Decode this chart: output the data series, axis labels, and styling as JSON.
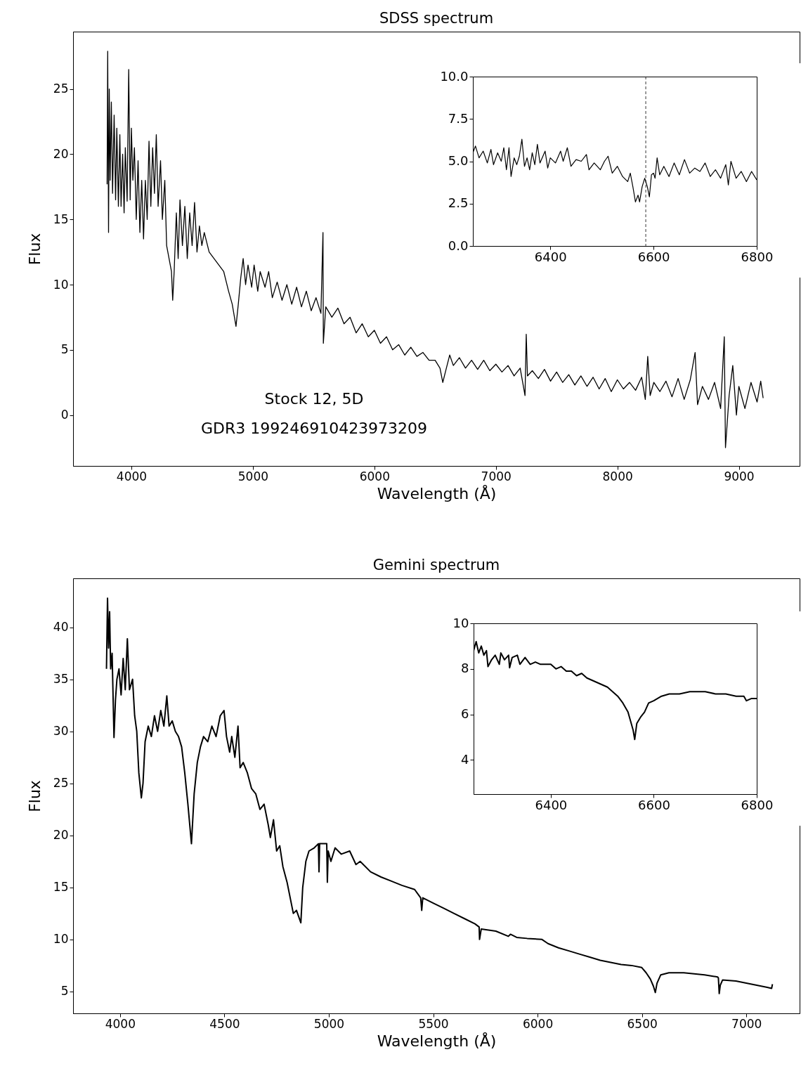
{
  "chart_data": [
    {
      "type": "line",
      "title": "SDSS spectrum",
      "xlabel": "Wavelength (Å)",
      "ylabel": "Flux",
      "color": "#000000",
      "xlim": [
        3520,
        9500
      ],
      "ylim": [
        -3.9,
        29.4
      ],
      "xticks": [
        4000,
        5000,
        6000,
        7000,
        8000,
        9000
      ],
      "yticks": [
        0,
        5,
        10,
        15,
        20,
        25
      ],
      "annotations": [
        "Stock 12, 5D",
        "GDR3 199246910423973209"
      ],
      "x": [
        3800,
        3805,
        3812,
        3818,
        3825,
        3835,
        3845,
        3858,
        3870,
        3880,
        3893,
        3905,
        3915,
        3928,
        3940,
        3950,
        3965,
        3978,
        3990,
        4000,
        4012,
        4025,
        4040,
        4055,
        4070,
        4085,
        4100,
        4115,
        4130,
        4145,
        4160,
        4175,
        4190,
        4205,
        4220,
        4240,
        4255,
        4275,
        4290,
        4310,
        4330,
        4340,
        4352,
        4370,
        4385,
        4400,
        4420,
        4440,
        4460,
        4480,
        4500,
        4520,
        4540,
        4560,
        4580,
        4600,
        4640,
        4680,
        4720,
        4760,
        4800,
        4830,
        4861,
        4880,
        4900,
        4920,
        4940,
        4960,
        4990,
        5010,
        5040,
        5060,
        5100,
        5130,
        5160,
        5200,
        5240,
        5280,
        5320,
        5360,
        5400,
        5440,
        5480,
        5520,
        5560,
        5577,
        5580,
        5600,
        5650,
        5700,
        5750,
        5800,
        5850,
        5900,
        5950,
        6000,
        6050,
        6100,
        6150,
        6200,
        6250,
        6300,
        6350,
        6400,
        6450,
        6500,
        6540,
        6563,
        6590,
        6620,
        6650,
        6700,
        6750,
        6800,
        6850,
        6900,
        6950,
        7000,
        7050,
        7100,
        7150,
        7200,
        7240,
        7250,
        7260,
        7300,
        7350,
        7400,
        7450,
        7500,
        7550,
        7600,
        7650,
        7700,
        7750,
        7800,
        7850,
        7900,
        7950,
        8000,
        8050,
        8100,
        8150,
        8200,
        8230,
        8250,
        8270,
        8300,
        8350,
        8400,
        8450,
        8500,
        8550,
        8600,
        8640,
        8660,
        8700,
        8750,
        8800,
        8850,
        8880,
        8890,
        8920,
        8950,
        8980,
        9000,
        9050,
        9100,
        9150,
        9180,
        9200
      ],
      "values": [
        17.7,
        27.9,
        14,
        25,
        18,
        24,
        17,
        23,
        16.5,
        22,
        16,
        21.5,
        16,
        20,
        15.5,
        20.5,
        16.4,
        26.5,
        16.5,
        22,
        18,
        20.5,
        15,
        19.5,
        14,
        18,
        13.5,
        18,
        15,
        21,
        16,
        20.5,
        17,
        21.5,
        16,
        19.5,
        15,
        18,
        13,
        12,
        11,
        8.8,
        11,
        15.5,
        12,
        16.5,
        13,
        16,
        12,
        15.5,
        13,
        16.3,
        12.5,
        14.5,
        13,
        14,
        12.5,
        12,
        11.5,
        11,
        9.5,
        8.5,
        6.8,
        8.5,
        10.5,
        12,
        10,
        11.5,
        9.8,
        11.5,
        9.5,
        11,
        9.8,
        11,
        9,
        10.2,
        8.8,
        10,
        8.5,
        9.8,
        8.3,
        9.5,
        8,
        9,
        7.8,
        14,
        5.5,
        8.3,
        7.5,
        8.2,
        7,
        7.5,
        6.3,
        7,
        6,
        6.5,
        5.5,
        6,
        5,
        5.4,
        4.6,
        5.2,
        4.5,
        4.8,
        4.2,
        4.2,
        3.6,
        2.5,
        3.5,
        4.6,
        3.8,
        4.4,
        3.6,
        4.2,
        3.5,
        4.2,
        3.4,
        3.9,
        3.3,
        3.8,
        3,
        3.6,
        1.5,
        6.2,
        3,
        3.4,
        2.8,
        3.5,
        2.6,
        3.3,
        2.5,
        3.1,
        2.3,
        3,
        2.2,
        2.9,
        2,
        2.8,
        1.8,
        2.7,
        2,
        2.5,
        1.9,
        2.9,
        1.2,
        4.5,
        1.5,
        2.5,
        1.8,
        2.6,
        1.4,
        2.8,
        1.2,
        2.7,
        4.8,
        0.8,
        2.2,
        1.2,
        2.5,
        0.5,
        6,
        -2.5,
        1.5,
        3.8,
        0,
        2.2,
        0.5,
        2.5,
        1,
        2.6,
        1.3
      ]
    },
    {
      "type": "line",
      "color": "#000000",
      "xlim": [
        6250,
        6800
      ],
      "ylim": [
        0,
        10
      ],
      "xticks": [
        6400,
        6600,
        6800
      ],
      "yticks": [
        {
          "value": 0,
          "label": "0.0"
        },
        {
          "value": 2.5,
          "label": "2.5"
        },
        {
          "value": 5,
          "label": "5.0"
        },
        {
          "value": 7.5,
          "label": "7.5"
        },
        {
          "value": 10,
          "label": "10.0"
        }
      ],
      "ref_lines": [
        {
          "axis": "x",
          "value": 6585,
          "color": "#000000",
          "line_style": "dashed"
        }
      ],
      "x": [
        6250,
        6255,
        6262,
        6270,
        6278,
        6285,
        6290,
        6298,
        6305,
        6310,
        6315,
        6320,
        6324,
        6330,
        6335,
        6340,
        6345,
        6350,
        6355,
        6360,
        6365,
        6370,
        6375,
        6380,
        6390,
        6395,
        6400,
        6410,
        6420,
        6425,
        6433,
        6440,
        6450,
        6460,
        6470,
        6475,
        6485,
        6497,
        6505,
        6512,
        6520,
        6530,
        6540,
        6550,
        6555,
        6560,
        6565,
        6570,
        6573,
        6578,
        6583,
        6588,
        6592,
        6596,
        6600,
        6603,
        6607,
        6612,
        6620,
        6630,
        6640,
        6650,
        6660,
        6670,
        6680,
        6690,
        6700,
        6710,
        6720,
        6730,
        6740,
        6745,
        6750,
        6760,
        6770,
        6780,
        6790,
        6800
      ],
      "values": [
        5.5,
        5.9,
        5.2,
        5.6,
        4.9,
        5.7,
        4.8,
        5.5,
        5,
        5.8,
        4.5,
        5.8,
        4.1,
        5.2,
        4.8,
        5.3,
        6.3,
        4.7,
        5.2,
        4.5,
        5.5,
        4.8,
        6,
        4.9,
        5.6,
        4.6,
        5.2,
        4.9,
        5.6,
        5,
        5.8,
        4.7,
        5.1,
        5,
        5.4,
        4.5,
        4.9,
        4.5,
        5,
        5.3,
        4.3,
        4.7,
        4.1,
        3.8,
        4.3,
        3.5,
        2.6,
        3,
        2.6,
        3.5,
        4,
        3.5,
        2.9,
        4.2,
        4.3,
        4,
        5.2,
        4.2,
        4.7,
        4.1,
        4.9,
        4.2,
        5.1,
        4.3,
        4.6,
        4.4,
        4.9,
        4.1,
        4.5,
        4,
        4.8,
        3.6,
        5,
        4,
        4.4,
        3.8,
        4.4,
        3.9
      ]
    },
    {
      "type": "line",
      "title": "Gemini spectrum",
      "xlabel": "Wavelength (Å)",
      "ylabel": "Flux",
      "color": "#000000",
      "xlim": [
        3775,
        7255
      ],
      "ylim": [
        2.9,
        44.7
      ],
      "xticks": [
        4000,
        4500,
        5000,
        5500,
        6000,
        6500,
        7000
      ],
      "yticks": [
        5,
        10,
        15,
        20,
        25,
        30,
        35,
        40
      ],
      "x": [
        3935,
        3940,
        3945,
        3950,
        3955,
        3962,
        3971,
        3978,
        3985,
        3995,
        4005,
        4015,
        4025,
        4035,
        4045,
        4060,
        4070,
        4080,
        4090,
        4102,
        4110,
        4120,
        4135,
        4150,
        4165,
        4180,
        4195,
        4210,
        4224,
        4235,
        4250,
        4265,
        4280,
        4295,
        4310,
        4325,
        4342,
        4355,
        4370,
        4385,
        4400,
        4420,
        4440,
        4460,
        4480,
        4498,
        4510,
        4525,
        4535,
        4550,
        4565,
        4575,
        4590,
        4610,
        4630,
        4650,
        4670,
        4690,
        4710,
        4720,
        4735,
        4750,
        4765,
        4780,
        4800,
        4815,
        4830,
        4845,
        4866,
        4875,
        4890,
        4905,
        4930,
        4950,
        4953,
        4956,
        4990,
        4993,
        4997,
        5010,
        5030,
        5060,
        5100,
        5130,
        5150,
        5200,
        5250,
        5300,
        5350,
        5411,
        5440,
        5445,
        5450,
        5500,
        5550,
        5600,
        5650,
        5700,
        5720,
        5722,
        5730,
        5800,
        5860,
        5870,
        5900,
        5950,
        6021,
        6050,
        6100,
        6150,
        6200,
        6250,
        6300,
        6350,
        6400,
        6450,
        6499,
        6520,
        6540,
        6555,
        6564,
        6572,
        6590,
        6629,
        6700,
        6800,
        6862,
        6866,
        6870,
        6875,
        6886,
        6950,
        7000,
        7050,
        7100,
        7121,
        7125
      ],
      "values": [
        36,
        42.8,
        38,
        41.5,
        36,
        37.5,
        29.4,
        33,
        35,
        36,
        33.5,
        37,
        34,
        38.9,
        34,
        35,
        31.5,
        30,
        26,
        23.6,
        25,
        29,
        30.5,
        29.5,
        31.5,
        30,
        32,
        30.5,
        33.4,
        30.5,
        31,
        30,
        29.5,
        28.5,
        26,
        23,
        19.2,
        24,
        27,
        28.5,
        29.5,
        29,
        30.5,
        29.5,
        31.5,
        32,
        29.5,
        28,
        29.5,
        27.5,
        30.5,
        26.5,
        27,
        26,
        24.5,
        24,
        22.5,
        23,
        21,
        19.8,
        21.5,
        18.5,
        19,
        17,
        15.5,
        14,
        12.5,
        12.8,
        11.6,
        15,
        17.5,
        18.5,
        18.8,
        19.2,
        16.5,
        19.2,
        19.2,
        15.5,
        18.5,
        17.5,
        18.8,
        18.2,
        18.5,
        17.2,
        17.5,
        16.5,
        16,
        15.6,
        15.2,
        14.8,
        14,
        12.8,
        14,
        13.5,
        13,
        12.5,
        12,
        11.5,
        11.2,
        10,
        11,
        10.8,
        10.3,
        10.5,
        10.2,
        10.1,
        10,
        9.6,
        9.2,
        8.9,
        8.6,
        8.3,
        8,
        7.8,
        7.6,
        7.5,
        7.3,
        6.8,
        6.2,
        5.5,
        4.9,
        5.8,
        6.6,
        6.8,
        6.8,
        6.6,
        6.4,
        6.3,
        4.8,
        5.6,
        6.1,
        6,
        5.8,
        5.6,
        5.4,
        5.3,
        5.7
      ]
    },
    {
      "type": "line",
      "color": "#000000",
      "xlim": [
        6250,
        6800
      ],
      "ylim": [
        2.5,
        10
      ],
      "xticks": [
        6400,
        6600,
        6800
      ],
      "yticks": [
        4,
        6,
        8,
        10
      ],
      "x": [
        6250,
        6255,
        6260,
        6265,
        6270,
        6275,
        6278,
        6285,
        6292,
        6300,
        6303,
        6310,
        6318,
        6320,
        6325,
        6335,
        6340,
        6350,
        6360,
        6370,
        6380,
        6390,
        6400,
        6410,
        6420,
        6430,
        6440,
        6450,
        6460,
        6470,
        6480,
        6490,
        6500,
        6510,
        6520,
        6530,
        6540,
        6550,
        6555,
        6560,
        6563,
        6567,
        6575,
        6582,
        6590,
        6600,
        6615,
        6630,
        6650,
        6670,
        6690,
        6700,
        6720,
        6740,
        6760,
        6775,
        6780,
        6790,
        6800
      ],
      "values": [
        8.8,
        9.2,
        8.7,
        9,
        8.6,
        8.8,
        8.1,
        8.4,
        8.6,
        8.2,
        8.7,
        8.4,
        8.6,
        8.05,
        8.5,
        8.6,
        8.2,
        8.5,
        8.2,
        8.3,
        8.2,
        8.2,
        8.2,
        8,
        8.1,
        7.9,
        7.9,
        7.7,
        7.8,
        7.6,
        7.5,
        7.4,
        7.3,
        7.2,
        7,
        6.8,
        6.5,
        6.1,
        5.7,
        5.3,
        4.9,
        5.6,
        5.9,
        6.1,
        6.5,
        6.6,
        6.8,
        6.9,
        6.9,
        7,
        7,
        7,
        6.9,
        6.9,
        6.8,
        6.8,
        6.6,
        6.7,
        6.7
      ]
    }
  ]
}
